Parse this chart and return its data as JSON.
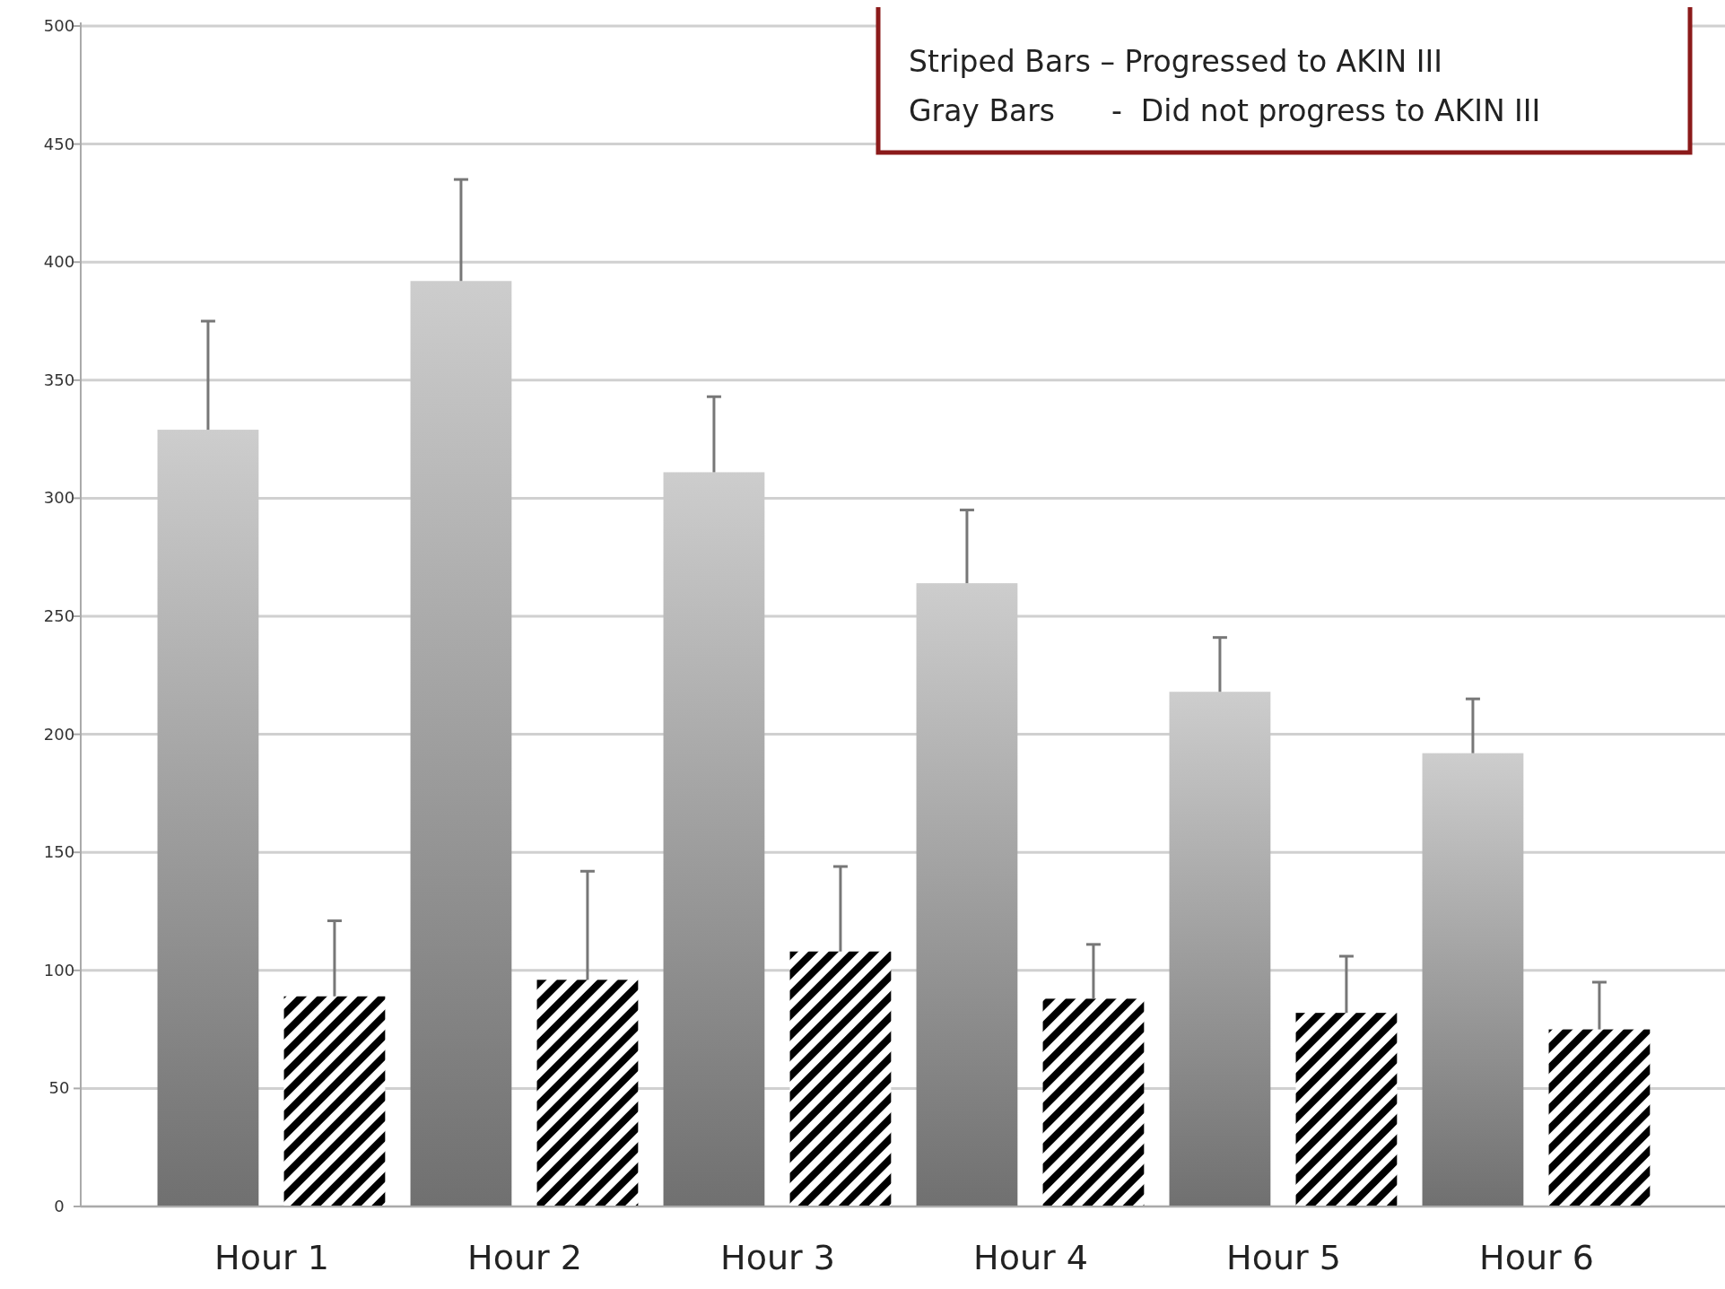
{
  "chart_data": {
    "type": "bar",
    "categories": [
      "Hour 1",
      "Hour 2",
      "Hour 3",
      "Hour 4",
      "Hour 5",
      "Hour 6"
    ],
    "series": [
      {
        "color": "#9a9a9a",
        "values": [
          329,
          392,
          311,
          264,
          218,
          192
        ],
        "errors": [
          [
            329,
            375
          ],
          [
            392,
            435
          ],
          [
            311,
            343
          ],
          [
            264,
            295
          ],
          [
            218,
            241
          ],
          [
            192,
            215
          ]
        ]
      },
      {
        "color": "#000000",
        "values": [
          89,
          96,
          108,
          88,
          82,
          75
        ],
        "errors": [
          [
            89,
            121
          ],
          [
            96,
            142
          ],
          [
            108,
            144
          ],
          [
            88,
            111
          ],
          [
            82,
            106
          ],
          [
            75,
            95
          ]
        ]
      }
    ],
    "ylim": [
      0,
      500
    ],
    "yticks": [
      0,
      50,
      100,
      150,
      200,
      250,
      300,
      350,
      400,
      450,
      500
    ],
    "grid": "y",
    "annotations": [
      "Striped Bars – Progressed to AKIN III",
      "Gray Bars      -  Did not progress to AKIN III"
    ]
  }
}
